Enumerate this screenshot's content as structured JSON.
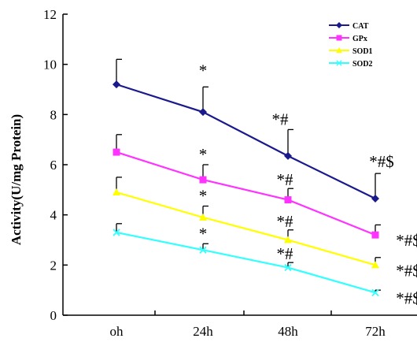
{
  "chart_data": {
    "type": "line",
    "ylabel": "Activity(U/mg Protein)",
    "categories": [
      "oh",
      "24h",
      "48h",
      "72h"
    ],
    "ylim": [
      0,
      12
    ],
    "yticks": [
      0,
      2,
      4,
      6,
      8,
      10,
      12
    ],
    "grid": false,
    "legend_position": "top-right",
    "series": [
      {
        "name": "CAT",
        "color": "#1a1a8c",
        "marker": "diamond",
        "values": [
          9.2,
          8.1,
          6.35,
          4.65
        ],
        "errors": [
          1.0,
          1.0,
          1.05,
          1.0
        ],
        "annotations": [
          "",
          "*",
          "*#",
          "*#$"
        ]
      },
      {
        "name": "GPx",
        "color": "#ff33ff",
        "marker": "square",
        "values": [
          6.5,
          5.4,
          4.6,
          3.2
        ],
        "errors": [
          0.7,
          0.6,
          0.45,
          0.4
        ],
        "annotations": [
          "",
          "*",
          "*#",
          "*#$"
        ]
      },
      {
        "name": "SOD1",
        "color": "#ffff00",
        "marker": "triangle",
        "values": [
          4.9,
          3.9,
          3.0,
          2.0
        ],
        "errors": [
          0.6,
          0.45,
          0.4,
          0.3
        ],
        "annotations": [
          "",
          "*",
          "*#",
          "*#$"
        ]
      },
      {
        "name": "SOD2",
        "color": "#33ffff",
        "marker": "x",
        "values": [
          3.3,
          2.6,
          1.9,
          0.9
        ],
        "errors": [
          0.35,
          0.25,
          0.2,
          0.1
        ],
        "annotations": [
          "",
          "*",
          "*#",
          "*#$"
        ]
      }
    ]
  }
}
